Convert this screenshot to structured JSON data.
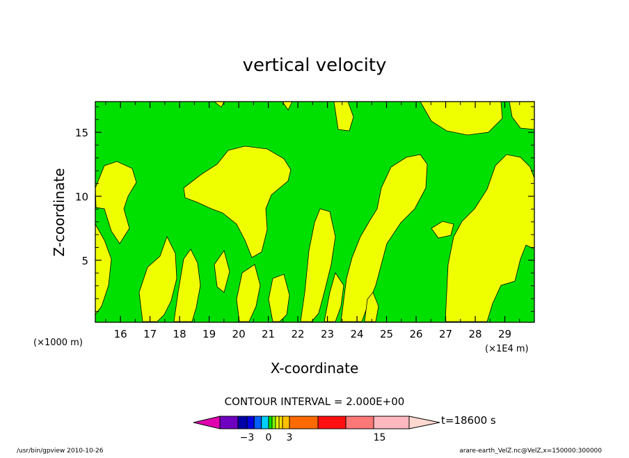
{
  "chart_data": {
    "type": "contour",
    "title": "vertical velocity",
    "xlabel": "X-coordinate",
    "ylabel": "Z-coordinate",
    "x_unit_label": "(×1E4 m)",
    "y_unit_label": "(×1000 m)",
    "xlim": [
      15.15,
      30.0
    ],
    "ylim": [
      0.15,
      17.4
    ],
    "x_ticks": [
      16,
      17,
      18,
      19,
      20,
      21,
      22,
      23,
      24,
      25,
      26,
      27,
      28,
      29
    ],
    "y_ticks": [
      5,
      10,
      15
    ],
    "contour_interval_label": "CONTOUR INTERVAL = 2.000E+00",
    "colors": {
      "positive": "#f0ff00",
      "negative": "#00e000",
      "line": "#000000"
    },
    "colorbar": {
      "tick_labels": [
        {
          "value": -3,
          "label": "−3"
        },
        {
          "value": 0,
          "label": "0"
        },
        {
          "value": 3,
          "label": "3"
        },
        {
          "value": 15,
          "label": "15"
        }
      ],
      "low_arrow_color": "#e000b0",
      "high_arrow_color": "#ffd8d0",
      "bins": [
        {
          "from": -6,
          "to": -4,
          "color": "#7000c0"
        },
        {
          "from": -4,
          "to": -3,
          "color": "#0000a8"
        },
        {
          "from": -3,
          "to": -2,
          "color": "#0000e0"
        },
        {
          "from": -2,
          "to": -1,
          "color": "#0060ff"
        },
        {
          "from": -1,
          "to": 0,
          "color": "#00d0ff"
        },
        {
          "from": 0,
          "to": 0.5,
          "color": "#00e000"
        },
        {
          "from": 0.5,
          "to": 1,
          "color": "#80ff00"
        },
        {
          "from": 1,
          "to": 1.5,
          "color": "#f0ff00"
        },
        {
          "from": 1.5,
          "to": 2,
          "color": "#ffe000"
        },
        {
          "from": 2,
          "to": 3,
          "color": "#ffc000"
        },
        {
          "from": 3,
          "to": 6,
          "color": "#ff6a00"
        },
        {
          "from": 6,
          "to": 10,
          "color": "#ff1010"
        },
        {
          "from": 10,
          "to": 14,
          "color": "#ff7878"
        },
        {
          "from": 14,
          "to": 20,
          "color": "#ffb8c0"
        }
      ]
    },
    "time_label": "t=18600 s",
    "footer_left": "/usr/bin/gpview  2010-10-26",
    "footer_right": "arare-earth_VelZ.nc@VelZ,x=150000:300000"
  }
}
